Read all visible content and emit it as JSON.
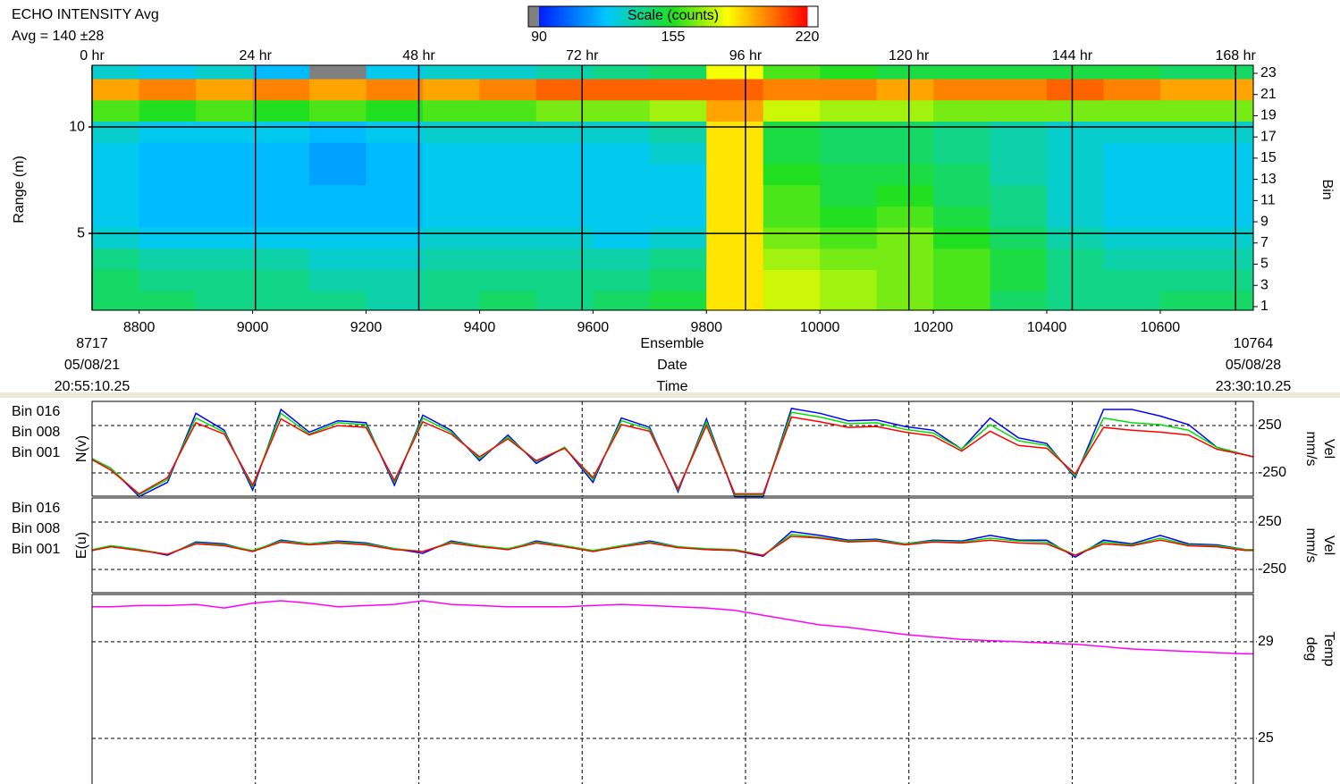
{
  "chart_data": [
    {
      "type": "heatmap",
      "title": "ECHO INTENSITY Avg",
      "subtitle": "Avg = 140 ±28",
      "colorbar": {
        "title": "Scale (counts)",
        "clim": [
          90,
          220
        ],
        "ticks": [
          90,
          155,
          220
        ]
      },
      "x_axis_labels": [
        "Ensemble",
        "Date",
        "Time"
      ],
      "start": {
        "date": "05/08/21",
        "time": "20:55:10.25"
      },
      "end": {
        "date": "05/08/28",
        "time": "23:30:10.25"
      },
      "xlim": [
        8717,
        10764
      ],
      "xticks": [
        8800,
        9000,
        9200,
        9400,
        9600,
        9800,
        10000,
        10200,
        10400,
        10600
      ],
      "x2lim": [
        0,
        170.6
      ],
      "x2ticks": [
        {
          "value": 0,
          "label": "0 hr"
        },
        {
          "value": 24,
          "label": "24 hr"
        },
        {
          "value": 48,
          "label": "48 hr"
        },
        {
          "value": 72,
          "label": "72 hr"
        },
        {
          "value": 96,
          "label": "96 hr"
        },
        {
          "value": 120,
          "label": "120 hr"
        },
        {
          "value": 144,
          "label": "144 hr"
        },
        {
          "value": 168,
          "label": "168 hr"
        }
      ],
      "ylabel": "Range (m)",
      "ylim": [
        1.39,
        12.9
      ],
      "yticks": [
        5,
        10
      ],
      "y2label": "Bin",
      "y2lim": [
        0.66,
        23.76
      ],
      "y2ticks": [
        1,
        3,
        5,
        7,
        9,
        11,
        13,
        15,
        17,
        19,
        21,
        23
      ],
      "x_bins": [
        8717,
        8800,
        8900,
        9000,
        9100,
        9200,
        9300,
        9400,
        9500,
        9600,
        9700,
        9800,
        9900,
        10000,
        10100,
        10200,
        10300,
        10400,
        10500,
        10600,
        10700,
        10764
      ],
      "y_bins": [
        0.66,
        2.5,
        4.5,
        6.5,
        8.5,
        10.5,
        12.5,
        14.5,
        16.5,
        18.5,
        20.5,
        22.5,
        23.76
      ],
      "values": [
        [
          145,
          145,
          140,
          140,
          140,
          135,
          140,
          145,
          140,
          145,
          150,
          185,
          175,
          170,
          165,
          160,
          145,
          140,
          140,
          145,
          145
        ],
        [
          145,
          140,
          140,
          140,
          135,
          135,
          140,
          140,
          140,
          140,
          145,
          185,
          175,
          170,
          165,
          160,
          150,
          140,
          140,
          140,
          140
        ],
        [
          140,
          135,
          135,
          135,
          130,
          130,
          135,
          135,
          135,
          135,
          140,
          185,
          170,
          165,
          165,
          160,
          150,
          140,
          135,
          135,
          135
        ],
        [
          130,
          125,
          125,
          125,
          125,
          125,
          130,
          130,
          130,
          125,
          130,
          185,
          165,
          160,
          165,
          155,
          145,
          135,
          130,
          130,
          130
        ],
        [
          125,
          120,
          120,
          120,
          120,
          120,
          125,
          125,
          125,
          125,
          125,
          185,
          160,
          155,
          160,
          150,
          140,
          130,
          125,
          125,
          125
        ],
        [
          125,
          120,
          120,
          120,
          120,
          120,
          125,
          125,
          125,
          125,
          125,
          185,
          160,
          150,
          155,
          145,
          140,
          130,
          125,
          125,
          125
        ],
        [
          125,
          120,
          120,
          120,
          115,
          120,
          125,
          125,
          125,
          125,
          125,
          185,
          155,
          150,
          150,
          145,
          135,
          130,
          125,
          125,
          125
        ],
        [
          125,
          120,
          120,
          120,
          115,
          120,
          125,
          125,
          125,
          125,
          130,
          185,
          150,
          145,
          145,
          140,
          135,
          130,
          125,
          125,
          125
        ],
        [
          130,
          125,
          125,
          125,
          120,
          125,
          130,
          130,
          130,
          130,
          135,
          185,
          150,
          145,
          145,
          140,
          135,
          130,
          130,
          130,
          130
        ],
        [
          160,
          155,
          160,
          155,
          160,
          155,
          160,
          160,
          165,
          165,
          170,
          195,
          175,
          170,
          170,
          165,
          165,
          165,
          165,
          165,
          165
        ],
        [
          195,
          200,
          195,
          200,
          195,
          200,
          195,
          200,
          205,
          205,
          205,
          205,
          200,
          200,
          195,
          200,
          200,
          205,
          200,
          195,
          195
        ],
        [
          130,
          125,
          130,
          120,
          85,
          125,
          130,
          130,
          135,
          140,
          145,
          180,
          160,
          155,
          150,
          150,
          150,
          150,
          150,
          145,
          145
        ]
      ]
    },
    {
      "type": "line",
      "ylabel": "N(v)",
      "y2label": [
        "Vel",
        "mm/s"
      ],
      "ylim": [
        -495,
        505
      ],
      "yticks": [
        -250,
        250
      ],
      "x": [
        8717,
        8750,
        8800,
        8850,
        8900,
        8950,
        9000,
        9050,
        9100,
        9150,
        9200,
        9250,
        9300,
        9350,
        9400,
        9450,
        9500,
        9550,
        9600,
        9650,
        9700,
        9750,
        9800,
        9850,
        9900,
        9950,
        10000,
        10050,
        10100,
        10150,
        10200,
        10250,
        10300,
        10350,
        10400,
        10450,
        10500,
        10550,
        10600,
        10650,
        10700,
        10750,
        10764
      ],
      "series": [
        {
          "name": "Bin 016",
          "color": "#0000ff",
          "values": [
            -100,
            -200,
            -500,
            -350,
            380,
            200,
            -430,
            420,
            180,
            300,
            280,
            -380,
            360,
            200,
            -120,
            150,
            -150,
            20,
            -350,
            330,
            230,
            -450,
            320,
            -500,
            -500,
            430,
            380,
            300,
            310,
            240,
            200,
            0,
            330,
            120,
            60,
            -300,
            420,
            420,
            350,
            260,
            20,
            -60,
            -80
          ]
        },
        {
          "name": "Bin 008",
          "color": "#00e000",
          "values": [
            -100,
            -200,
            -480,
            -320,
            330,
            180,
            -400,
            380,
            160,
            280,
            260,
            -350,
            330,
            180,
            -100,
            130,
            -130,
            20,
            -320,
            300,
            210,
            -430,
            290,
            -480,
            -480,
            390,
            340,
            270,
            280,
            210,
            170,
            0,
            260,
            90,
            40,
            -280,
            330,
            280,
            260,
            200,
            20,
            -60,
            -80
          ]
        },
        {
          "name": "Bin 001",
          "color": "#ff0000",
          "values": [
            -110,
            -220,
            -470,
            -300,
            280,
            160,
            -380,
            320,
            150,
            250,
            230,
            -330,
            290,
            160,
            -80,
            110,
            -120,
            10,
            -300,
            260,
            190,
            -420,
            250,
            -470,
            -470,
            340,
            290,
            230,
            240,
            180,
            140,
            -20,
            190,
            40,
            10,
            -260,
            230,
            200,
            180,
            150,
            0,
            -60,
            -80
          ]
        }
      ]
    },
    {
      "type": "line",
      "ylabel": "E(u)",
      "y2label": [
        "Vel",
        "mm/s"
      ],
      "ylim": [
        -495,
        505
      ],
      "yticks": [
        -250,
        250
      ],
      "x": [
        8717,
        8750,
        8800,
        8850,
        8900,
        8950,
        9000,
        9050,
        9100,
        9150,
        9200,
        9250,
        9300,
        9350,
        9400,
        9450,
        9500,
        9550,
        9600,
        9650,
        9700,
        9750,
        9800,
        9850,
        9900,
        9950,
        10000,
        10050,
        10100,
        10150,
        10200,
        10250,
        10300,
        10350,
        10400,
        10450,
        10500,
        10550,
        10600,
        10650,
        10700,
        10750,
        10764
      ],
      "series": [
        {
          "name": "Bin 016",
          "color": "#0000ff",
          "values": [
            -50,
            0,
            -40,
            -100,
            40,
            20,
            -60,
            60,
            20,
            50,
            30,
            -30,
            -80,
            50,
            0,
            -40,
            50,
            0,
            -60,
            0,
            50,
            -10,
            -40,
            -50,
            -110,
            150,
            110,
            60,
            70,
            20,
            60,
            50,
            110,
            60,
            60,
            -120,
            60,
            20,
            110,
            20,
            10,
            -40,
            -50
          ]
        },
        {
          "name": "Bin 008",
          "color": "#00e000",
          "values": [
            -40,
            0,
            -40,
            -90,
            30,
            10,
            -50,
            50,
            20,
            40,
            20,
            -30,
            -60,
            40,
            0,
            -30,
            40,
            0,
            -50,
            0,
            40,
            -10,
            -30,
            -40,
            -100,
            120,
            90,
            50,
            60,
            20,
            50,
            40,
            80,
            50,
            40,
            -100,
            40,
            10,
            80,
            10,
            0,
            -40,
            -40
          ]
        },
        {
          "name": "Bin 001",
          "color": "#ff0000",
          "values": [
            -50,
            -10,
            -50,
            -90,
            20,
            0,
            -60,
            40,
            10,
            30,
            10,
            -40,
            -60,
            30,
            -10,
            -40,
            30,
            -10,
            -60,
            -10,
            30,
            -20,
            -40,
            -50,
            -100,
            100,
            80,
            40,
            50,
            10,
            40,
            30,
            60,
            30,
            20,
            -100,
            20,
            0,
            60,
            0,
            -10,
            -50,
            -50
          ]
        }
      ]
    },
    {
      "type": "line",
      "y2label": [
        "Temp",
        "deg"
      ],
      "ylim": [
        23.11,
        30.96
      ],
      "yticks": [
        25,
        29
      ],
      "x": [
        8717,
        8750,
        8800,
        8850,
        8900,
        8950,
        9000,
        9050,
        9100,
        9150,
        9200,
        9250,
        9300,
        9350,
        9400,
        9450,
        9500,
        9550,
        9600,
        9650,
        9700,
        9750,
        9800,
        9850,
        9900,
        9950,
        10000,
        10050,
        10100,
        10150,
        10200,
        10250,
        10300,
        10350,
        10400,
        10450,
        10500,
        10550,
        10600,
        10650,
        10700,
        10750,
        10764
      ],
      "series": [
        {
          "color": "#ff00ff",
          "values": [
            30.45,
            30.45,
            30.5,
            30.5,
            30.55,
            30.4,
            30.6,
            30.7,
            30.6,
            30.45,
            30.5,
            30.55,
            30.7,
            30.55,
            30.5,
            30.45,
            30.45,
            30.45,
            30.5,
            30.55,
            30.5,
            30.45,
            30.4,
            30.3,
            30.1,
            29.9,
            29.7,
            29.6,
            29.45,
            29.3,
            29.2,
            29.1,
            29.05,
            29.0,
            28.95,
            28.9,
            28.8,
            28.7,
            28.65,
            28.6,
            28.55,
            28.5,
            28.5
          ]
        }
      ]
    }
  ]
}
